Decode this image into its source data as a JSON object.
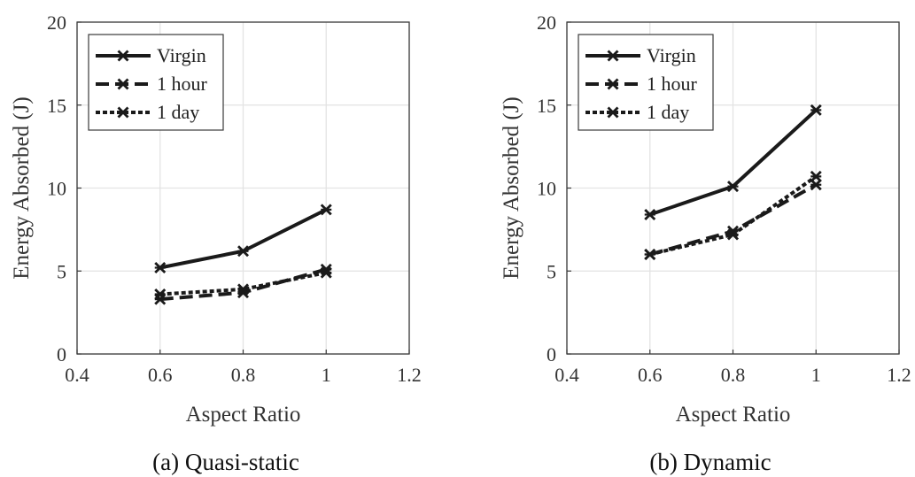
{
  "chart_data": [
    {
      "type": "line",
      "caption": "(a) Quasi-static",
      "xlabel": "Aspect Ratio",
      "ylabel": "Energy Absorbed (J)",
      "xlim": [
        0.4,
        1.2
      ],
      "ylim": [
        0,
        20
      ],
      "xticks": [
        0.4,
        0.6,
        0.8,
        1,
        1.2
      ],
      "xtick_labels": [
        "0.4",
        "0.6",
        "0.8",
        "1",
        "1.2"
      ],
      "yticks": [
        0,
        5,
        10,
        15,
        20
      ],
      "ytick_labels": [
        "0",
        "5",
        "10",
        "15",
        "20"
      ],
      "grid": true,
      "legend_position": "top-left",
      "x": [
        0.6,
        0.8,
        1.0
      ],
      "series": [
        {
          "name": "Virgin",
          "style": "solid",
          "values": [
            5.2,
            6.2,
            8.7
          ]
        },
        {
          "name": "1 hour",
          "style": "dashed",
          "values": [
            3.3,
            3.7,
            5.1
          ]
        },
        {
          "name": "1 day",
          "style": "dotted",
          "values": [
            3.6,
            3.9,
            4.9
          ]
        }
      ],
      "color": "#1a1a1a"
    },
    {
      "type": "line",
      "caption": "(b) Dynamic",
      "xlabel": "Aspect Ratio",
      "ylabel": "Energy Absorbed (J)",
      "xlim": [
        0.4,
        1.2
      ],
      "ylim": [
        0,
        20
      ],
      "xticks": [
        0.4,
        0.6,
        0.8,
        1,
        1.2
      ],
      "xtick_labels": [
        "0.4",
        "0.6",
        "0.8",
        "1",
        "1.2"
      ],
      "yticks": [
        0,
        5,
        10,
        15,
        20
      ],
      "ytick_labels": [
        "0",
        "5",
        "10",
        "15",
        "20"
      ],
      "grid": true,
      "legend_position": "top-left",
      "x": [
        0.6,
        0.8,
        1.0
      ],
      "series": [
        {
          "name": "Virgin",
          "style": "solid",
          "values": [
            8.4,
            10.1,
            14.7
          ]
        },
        {
          "name": "1 hour",
          "style": "dashed",
          "values": [
            6.0,
            7.4,
            10.2
          ]
        },
        {
          "name": "1 day",
          "style": "dotted",
          "values": [
            6.0,
            7.2,
            10.7
          ]
        }
      ],
      "color": "#1a1a1a"
    }
  ]
}
